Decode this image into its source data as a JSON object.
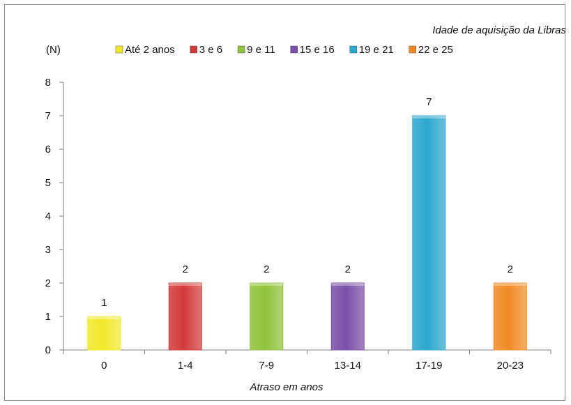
{
  "chart_data": {
    "type": "bar",
    "legend_title": "Idade de aquisição da Libras",
    "legend_position": "top",
    "ylabel": "(N)",
    "xlabel": "Atraso em anos",
    "ylim": [
      0,
      8
    ],
    "yticks": [
      "0",
      "1",
      "2",
      "3",
      "4",
      "5",
      "6",
      "7",
      "8"
    ],
    "grid": false,
    "categories": [
      "0",
      "1-4",
      "7-9",
      "13-14",
      "17-19",
      "20-23"
    ],
    "series": [
      {
        "name": "Até 2 anos",
        "category": "0",
        "value": 1,
        "color": "#f2e82a"
      },
      {
        "name": "3 e 6",
        "category": "1-4",
        "value": 2,
        "color": "#d23a3a"
      },
      {
        "name": "9 e 11",
        "category": "7-9",
        "value": 2,
        "color": "#8fc23a"
      },
      {
        "name": "15 e 16",
        "category": "13-14",
        "value": 2,
        "color": "#7a4fa8"
      },
      {
        "name": "19 e 21",
        "category": "17-19",
        "value": 7,
        "color": "#2ba7cf"
      },
      {
        "name": "22 e 25",
        "category": "20-23",
        "value": 2,
        "color": "#f08a24"
      }
    ]
  }
}
